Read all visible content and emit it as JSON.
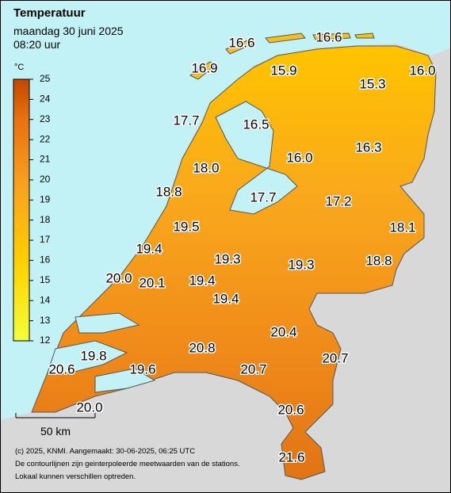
{
  "header": {
    "title": "Temperatuur",
    "date": "maandag 30 juni 2025",
    "time": "08:20 uur"
  },
  "legend": {
    "unit": "°C",
    "ticks": [
      12,
      13,
      14,
      15,
      16,
      17,
      18,
      19,
      20,
      21,
      22,
      23,
      24,
      25
    ]
  },
  "stations": [
    "16.6",
    "16.6",
    "16.9",
    "15.9",
    "15.3",
    "16.0",
    "17.7",
    "16.5",
    "18.0",
    "16.0",
    "16.3",
    "18.8",
    "17.7",
    "17.2",
    "19.5",
    "18.1",
    "19.4",
    "19.3",
    "19.3",
    "18.8",
    "20.0",
    "20.1",
    "19.4",
    "19.4",
    "20.4",
    "20.8",
    "19.8",
    "20.7",
    "20.6",
    "19.6",
    "20.7",
    "20.6",
    "20.0",
    "21.6"
  ],
  "scale_bar": "50 km",
  "footer": [
    "(c) 2025, KNMI. Aangemaakt: 30-06-2025, 06:25 UTC",
    "De contourlijnen zijn geinterpoleerde meetwaarden van de stations.",
    "Lokaal kunnen verschillen optreden."
  ]
}
